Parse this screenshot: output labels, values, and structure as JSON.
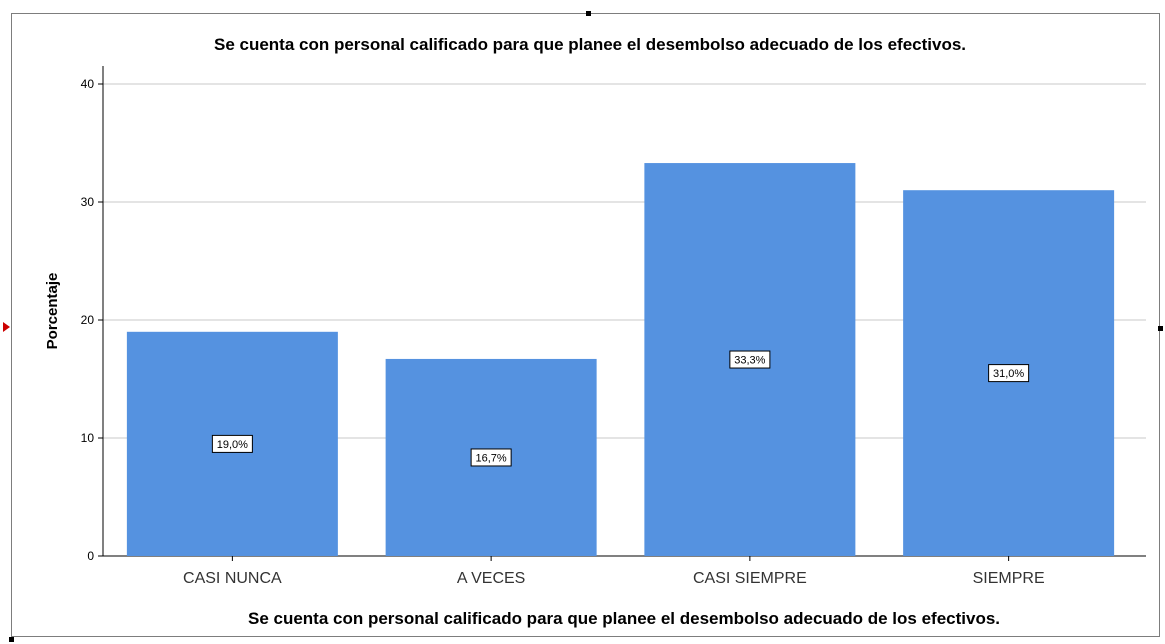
{
  "chart_data": {
    "type": "bar",
    "title": "Se cuenta con personal calificado para que planee el desembolso adecuado de los efectivos.",
    "xlabel": "Se cuenta con personal calificado para que planee el desembolso adecuado de los efectivos.",
    "ylabel": "Porcentaje",
    "categories": [
      "CASI NUNCA",
      "A VECES",
      "CASI SIEMPRE",
      "SIEMPRE"
    ],
    "values": [
      19.0,
      16.7,
      33.3,
      31.0
    ],
    "data_labels": [
      "19,0%",
      "16,7%",
      "33,3%",
      "31,0%"
    ],
    "ylim": [
      0,
      40
    ],
    "yticks": [
      0,
      10,
      20,
      30,
      40
    ],
    "grid": true,
    "bar_color": "#5592e0"
  }
}
